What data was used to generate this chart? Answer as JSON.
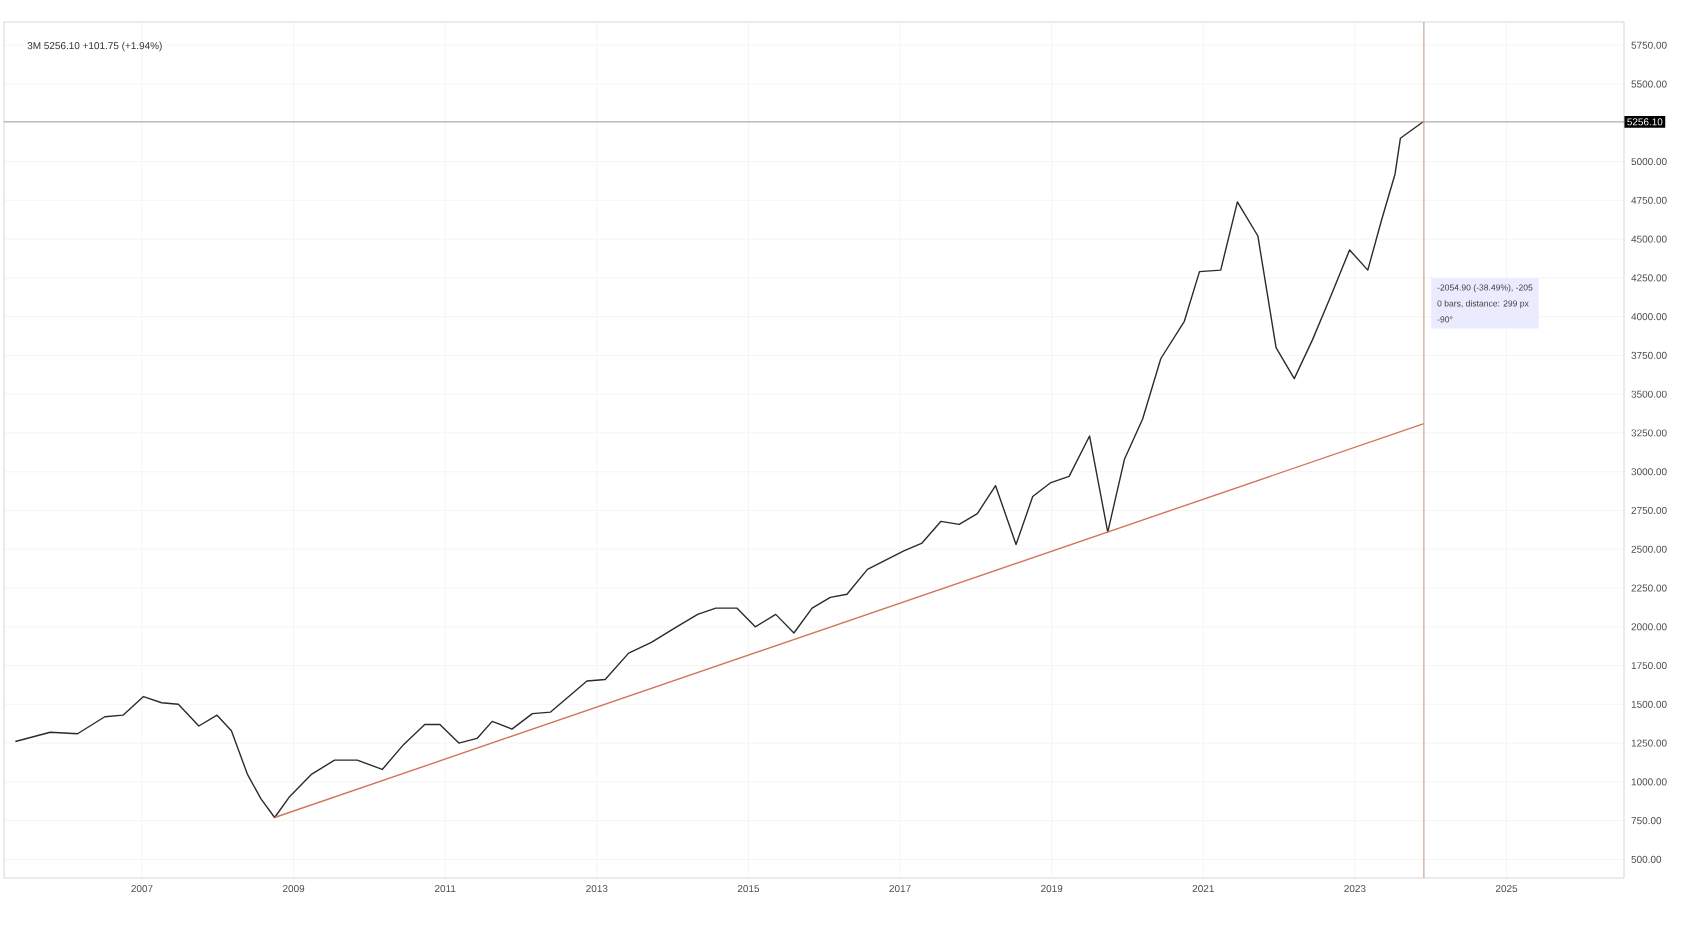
{
  "chart_data": {
    "type": "line",
    "title": "3M 5256.10 +101.75 (+1.94%)",
    "xlim": [
      2005.18,
      2026.55
    ],
    "xticks": [
      2007,
      2009,
      2011,
      2013,
      2015,
      2017,
      2019,
      2021,
      2023,
      2025
    ],
    "ylim": [
      380,
      5900
    ],
    "yticks": [
      {
        "value": 500,
        "label": "500.00"
      },
      {
        "value": 750,
        "label": "750.00"
      },
      {
        "value": 1000,
        "label": "1000.00"
      },
      {
        "value": 1250,
        "label": "1250.00"
      },
      {
        "value": 1500,
        "label": "1500.00"
      },
      {
        "value": 1750,
        "label": "1750.00"
      },
      {
        "value": 2000,
        "label": "2000.00"
      },
      {
        "value": 2250,
        "label": "2250.00"
      },
      {
        "value": 2500,
        "label": "2500.00"
      },
      {
        "value": 2750,
        "label": "2750.00"
      },
      {
        "value": 3000,
        "label": "3000.00"
      },
      {
        "value": 3250,
        "label": "3250.00"
      },
      {
        "value": 3500,
        "label": "3500.00"
      },
      {
        "value": 3750,
        "label": "3750.00"
      },
      {
        "value": 4000,
        "label": "4000.00"
      },
      {
        "value": 4250,
        "label": "4250.00"
      },
      {
        "value": 4500,
        "label": "4500.00"
      },
      {
        "value": 4750,
        "label": "4750.00"
      },
      {
        "value": 5000,
        "label": "5000.00"
      },
      {
        "value": 5250,
        "label": null
      },
      {
        "value": 5500,
        "label": "5500.00"
      },
      {
        "value": 5750,
        "label": "5750.00"
      }
    ],
    "grid": true,
    "marker": "none",
    "line_style": "solid",
    "series": [
      {
        "color": "#2b2b2b",
        "x": [
          2005.33,
          2005.79,
          2006.15,
          2006.51,
          2006.75,
          2007.02,
          2007.26,
          2007.48,
          2007.75,
          2007.99,
          2008.18,
          2008.39,
          2008.57,
          2008.75,
          2008.94,
          2009.24,
          2009.54,
          2009.84,
          2010.17,
          2010.45,
          2010.73,
          2010.93,
          2011.18,
          2011.42,
          2011.62,
          2011.88,
          2012.15,
          2012.39,
          2012.63,
          2012.87,
          2013.11,
          2013.42,
          2013.72,
          2014.02,
          2014.33,
          2014.57,
          2014.85,
          2015.09,
          2015.36,
          2015.6,
          2015.84,
          2016.08,
          2016.3,
          2016.57,
          2016.81,
          2017.05,
          2017.29,
          2017.54,
          2017.78,
          2018.02,
          2018.26,
          2018.53,
          2018.75,
          2018.99,
          2019.23,
          2019.5,
          2019.74,
          2019.96,
          2020.2,
          2020.44,
          2020.75,
          2020.95,
          2021.23,
          2021.45,
          2021.72,
          2021.96,
          2022.2,
          2022.44,
          2022.68,
          2022.93,
          2023.17,
          2023.35,
          2023.53,
          2023.6,
          2023.91
        ],
        "values": [
          1260,
          1320,
          1310,
          1420,
          1430,
          1550,
          1510,
          1500,
          1360,
          1430,
          1330,
          1050,
          890,
          770,
          900,
          1050,
          1140,
          1140,
          1080,
          1240,
          1370,
          1370,
          1250,
          1280,
          1390,
          1340,
          1440,
          1450,
          1550,
          1650,
          1660,
          1830,
          1900,
          1990,
          2080,
          2120,
          2120,
          2000,
          2080,
          1960,
          2120,
          2190,
          2210,
          2370,
          2430,
          2490,
          2540,
          2680,
          2660,
          2730,
          2910,
          2530,
          2840,
          2930,
          2970,
          3230,
          2610,
          3080,
          3340,
          3730,
          3970,
          4290,
          4300,
          4740,
          4520,
          3800,
          3600,
          3850,
          4130,
          4430,
          4300,
          4620,
          4920,
          5150,
          5260
        ]
      },
      {
        "color": "#d4735e",
        "x": [
          2008.75,
          2023.91
        ],
        "values": [
          770,
          3310
        ]
      }
    ],
    "ref_lines": [
      {
        "axis": "y",
        "value": 5256.1,
        "label": "5256.10",
        "color": "#9e9e9e"
      },
      {
        "axis": "x",
        "value": 2023.91,
        "color": "#c9a58f"
      }
    ],
    "annotations": [
      "-2054.90 (-38.49%), -205",
      "0 bars, distance: 299 px",
      "-90°"
    ]
  }
}
